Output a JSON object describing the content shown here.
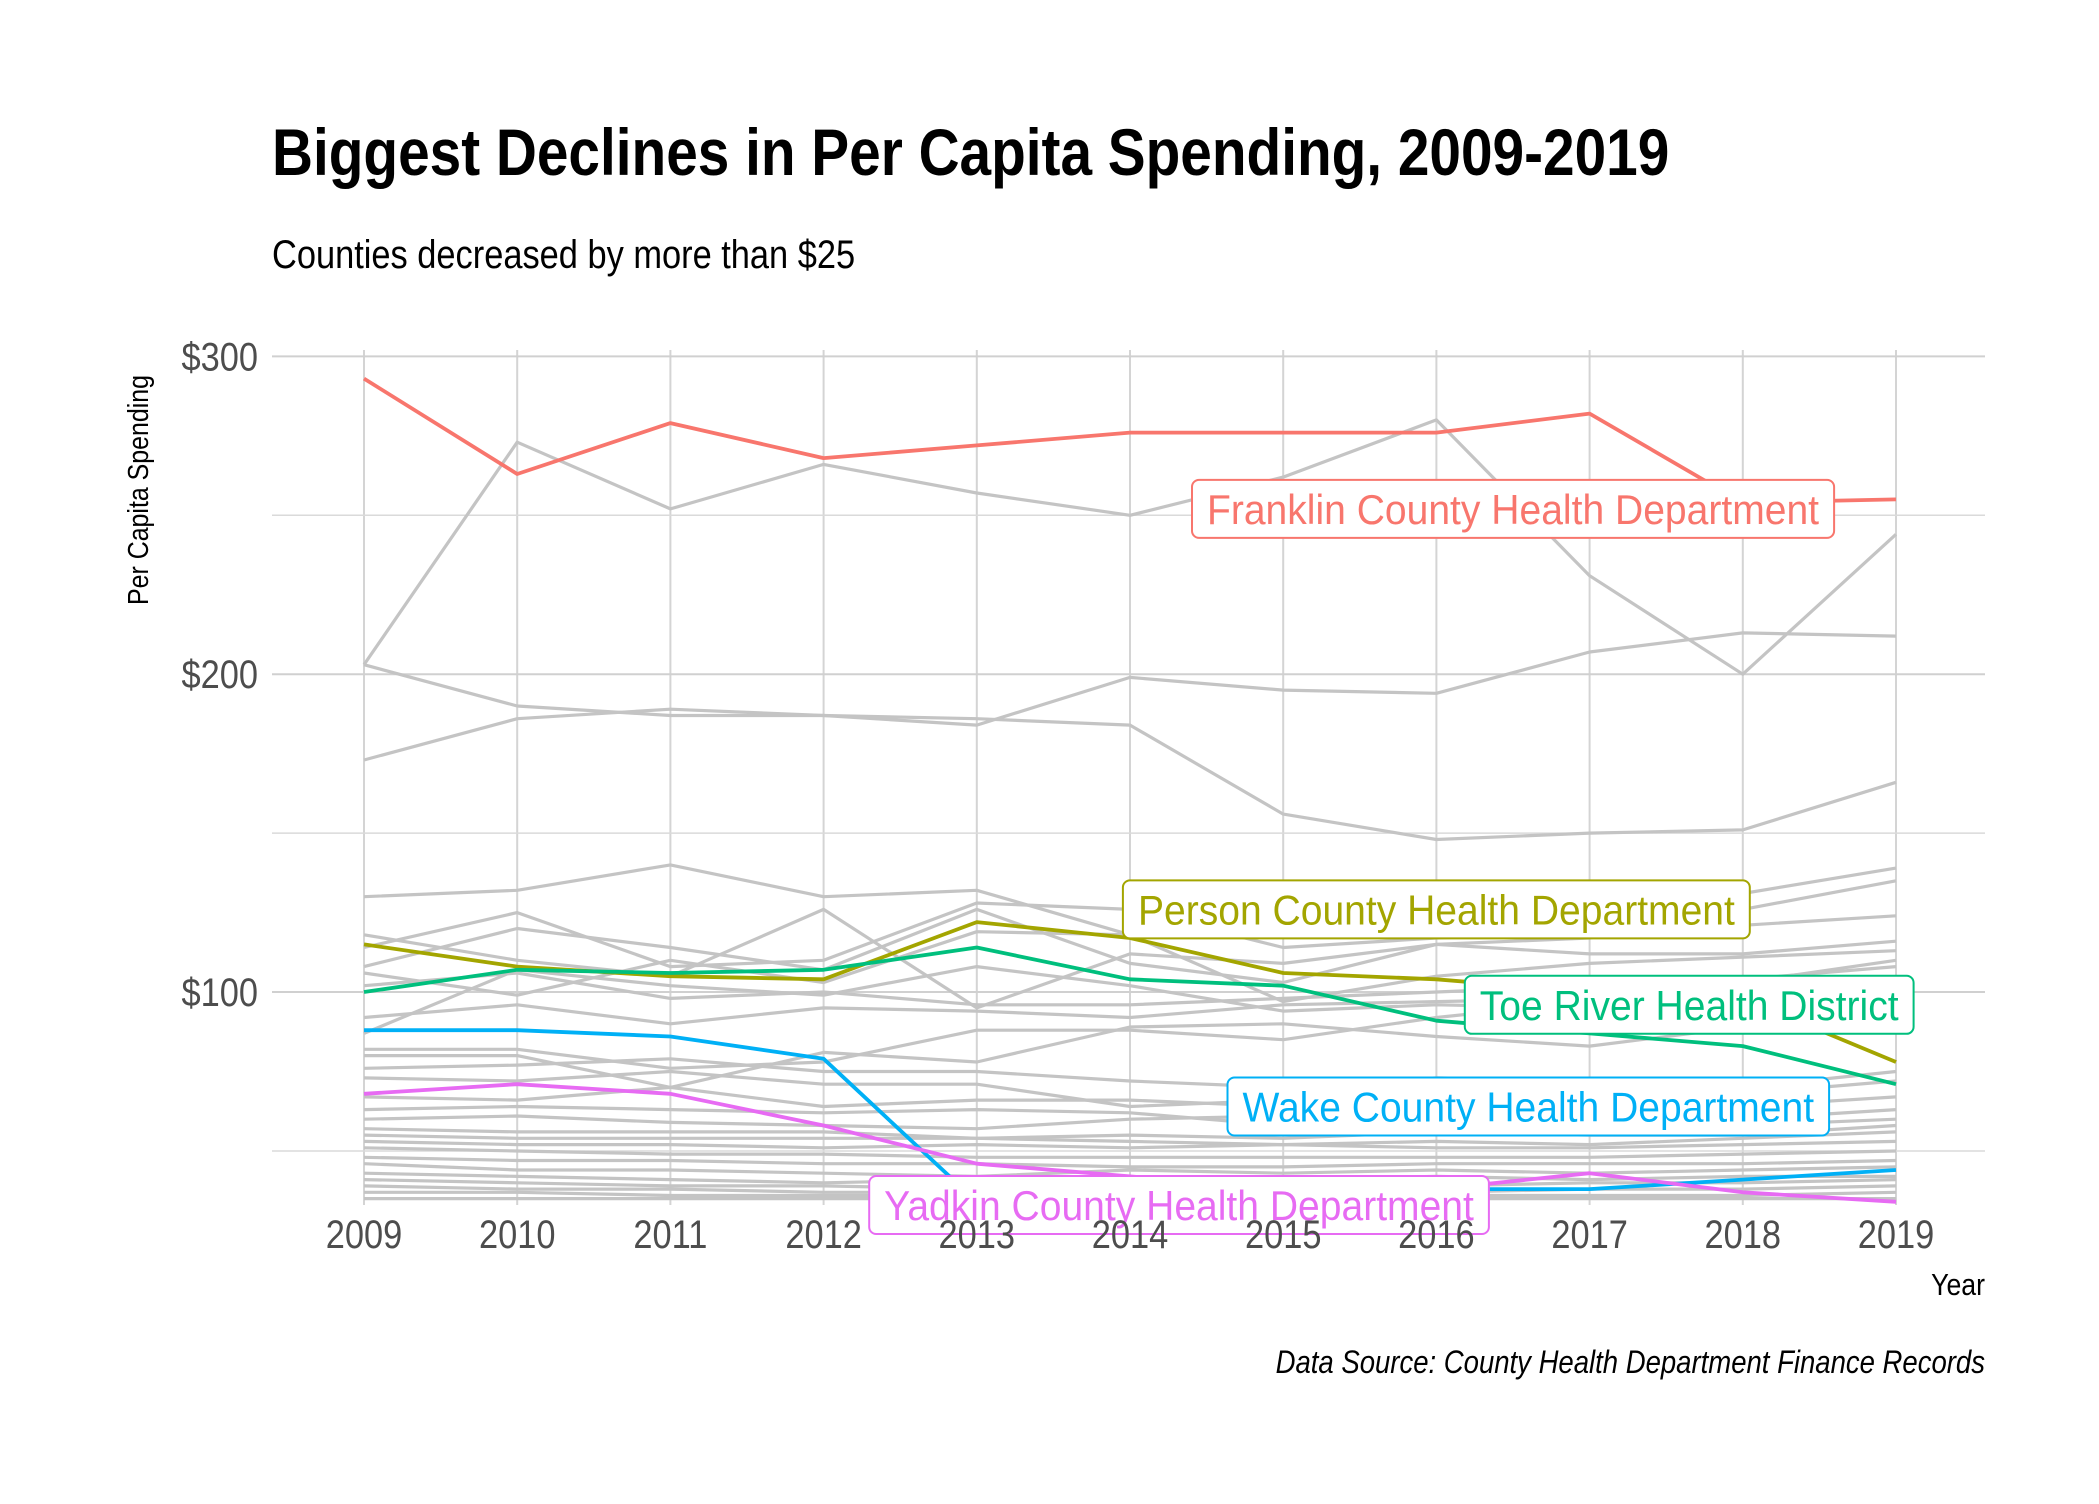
{
  "chart_data": {
    "type": "line",
    "title": "Biggest Declines in Per Capita Spending, 2009-2019",
    "subtitle": "Counties decreased by more than $25",
    "xlabel": "Year",
    "ylabel": "Per Capita Spending",
    "caption": "Data Source: County Health Department Finance Records",
    "x": [
      2009,
      2010,
      2011,
      2012,
      2013,
      2014,
      2015,
      2016,
      2017,
      2018,
      2019
    ],
    "x_tick_labels": [
      "2009",
      "2010",
      "2011",
      "2012",
      "2013",
      "2014",
      "2015",
      "2016",
      "2017",
      "2018",
      "2019"
    ],
    "y_ticks": [
      100,
      200,
      300
    ],
    "y_tick_labels": [
      "$100",
      "$200",
      "$300"
    ],
    "ylim": [
      33,
      302
    ],
    "grid": true,
    "legend": "none (direct labels)",
    "highlight_series": [
      {
        "name": "Franklin County Health Department",
        "color": "#F8766D",
        "values": [
          293,
          263,
          279,
          268,
          272,
          276,
          276,
          276,
          282,
          254,
          255
        ]
      },
      {
        "name": "Person County Health Department",
        "color": "#A3A500",
        "values": [
          115,
          108,
          105,
          104,
          122,
          117,
          106,
          104,
          100,
          98,
          78
        ]
      },
      {
        "name": "Toe River Health District",
        "color": "#00BF7D",
        "values": [
          100,
          107,
          106,
          107,
          114,
          104,
          102,
          91,
          87,
          83,
          71
        ]
      },
      {
        "name": "Wake County Health Department",
        "color": "#00B0F6",
        "values": [
          88,
          88,
          86,
          79,
          34,
          37,
          37,
          38,
          38,
          41,
          44
        ]
      },
      {
        "name": "Yadkin County Health Department",
        "color": "#E76BF3",
        "values": [
          68,
          71,
          68,
          58,
          46,
          42,
          38,
          38,
          43,
          37,
          34
        ]
      }
    ],
    "background_series": [
      {
        "values": [
          203,
          273,
          252,
          266,
          257,
          250,
          262,
          280,
          231,
          200,
          244
        ]
      },
      {
        "values": [
          203,
          190,
          187,
          187,
          186,
          184,
          156,
          148,
          150,
          151,
          166
        ]
      },
      {
        "values": [
          173,
          186,
          189,
          187,
          184,
          199,
          195,
          194,
          207,
          213,
          212
        ]
      },
      {
        "values": [
          130,
          132,
          140,
          130,
          132,
          118,
          119,
          121,
          124,
          131,
          139
        ]
      },
      {
        "values": [
          118,
          110,
          105,
          126,
          95,
          112,
          109,
          115,
          117,
          126,
          135
        ]
      },
      {
        "values": [
          114,
          125,
          108,
          110,
          128,
          126,
          114,
          117,
          119,
          121,
          124
        ]
      },
      {
        "values": [
          108,
          120,
          114,
          107,
          126,
          109,
          103,
          115,
          112,
          112,
          116
        ]
      },
      {
        "values": [
          106,
          99,
          110,
          103,
          119,
          118,
          97,
          105,
          109,
          111,
          113
        ]
      },
      {
        "values": [
          102,
          106,
          98,
          100,
          96,
          96,
          98,
          100,
          102,
          103,
          110
        ]
      },
      {
        "values": [
          92,
          96,
          90,
          95,
          94,
          92,
          96,
          97,
          98,
          104,
          108
        ]
      },
      {
        "values": [
          87,
          107,
          102,
          99,
          108,
          102,
          94,
          96,
          95,
          93,
          96
        ]
      },
      {
        "values": [
          82,
          82,
          76,
          78,
          88,
          88,
          85,
          92,
          97,
          101,
          92
        ]
      },
      {
        "values": [
          80,
          80,
          70,
          81,
          78,
          89,
          90,
          86,
          83,
          89,
          91
        ]
      },
      {
        "values": [
          76,
          77,
          79,
          75,
          75,
          72,
          70,
          73,
          72,
          70,
          75
        ]
      },
      {
        "values": [
          73,
          72,
          75,
          71,
          71,
          64,
          66,
          68,
          70,
          68,
          72
        ]
      },
      {
        "values": [
          67,
          66,
          70,
          64,
          66,
          66,
          64,
          65,
          64,
          64,
          67
        ]
      },
      {
        "values": [
          63,
          64,
          63,
          62,
          63,
          62,
          58,
          61,
          62,
          60,
          63
        ]
      },
      {
        "values": [
          60,
          61,
          59,
          58,
          57,
          60,
          61,
          58,
          57,
          58,
          60
        ]
      },
      {
        "values": [
          57,
          56,
          56,
          56,
          54,
          55,
          54,
          56,
          55,
          55,
          58
        ]
      },
      {
        "values": [
          55,
          54,
          54,
          54,
          54,
          53,
          52,
          53,
          52,
          54,
          56
        ]
      },
      {
        "values": [
          53,
          52,
          52,
          51,
          52,
          51,
          52,
          51,
          51,
          52,
          53
        ]
      },
      {
        "values": [
          51,
          50,
          49,
          49,
          48,
          48,
          48,
          48,
          48,
          49,
          50
        ]
      },
      {
        "values": [
          48,
          47,
          47,
          46,
          46,
          45,
          45,
          46,
          46,
          46,
          47
        ]
      },
      {
        "values": [
          46,
          44,
          44,
          43,
          42,
          44,
          43,
          44,
          43,
          44,
          45
        ]
      },
      {
        "values": [
          43,
          42,
          41,
          40,
          41,
          41,
          41,
          42,
          41,
          42,
          42
        ]
      },
      {
        "values": [
          41,
          40,
          39,
          39,
          38,
          39,
          38,
          39,
          40,
          40,
          41
        ]
      },
      {
        "values": [
          39,
          38,
          38,
          37,
          37,
          37,
          37,
          37,
          38,
          38,
          39
        ]
      },
      {
        "values": [
          37,
          37,
          36,
          36,
          36,
          36,
          36,
          36,
          36,
          36,
          37
        ]
      },
      {
        "values": [
          35,
          35,
          35,
          35,
          35,
          35,
          35,
          35,
          35,
          35,
          35
        ]
      }
    ],
    "annotations": [
      {
        "series": 0,
        "text": "Franklin County Health Department",
        "x": 2016.5,
        "y": 252
      },
      {
        "series": 1,
        "text": "Person County Health Department",
        "x": 2016.0,
        "y": 126
      },
      {
        "series": 2,
        "text": "Toe River Health District",
        "x": 2017.65,
        "y": 96
      },
      {
        "series": 3,
        "text": "Wake County Health Department",
        "x": 2016.6,
        "y": 64
      },
      {
        "series": 4,
        "text": "Yadkin County Health Department",
        "x": 2014.32,
        "y": 33
      }
    ]
  }
}
